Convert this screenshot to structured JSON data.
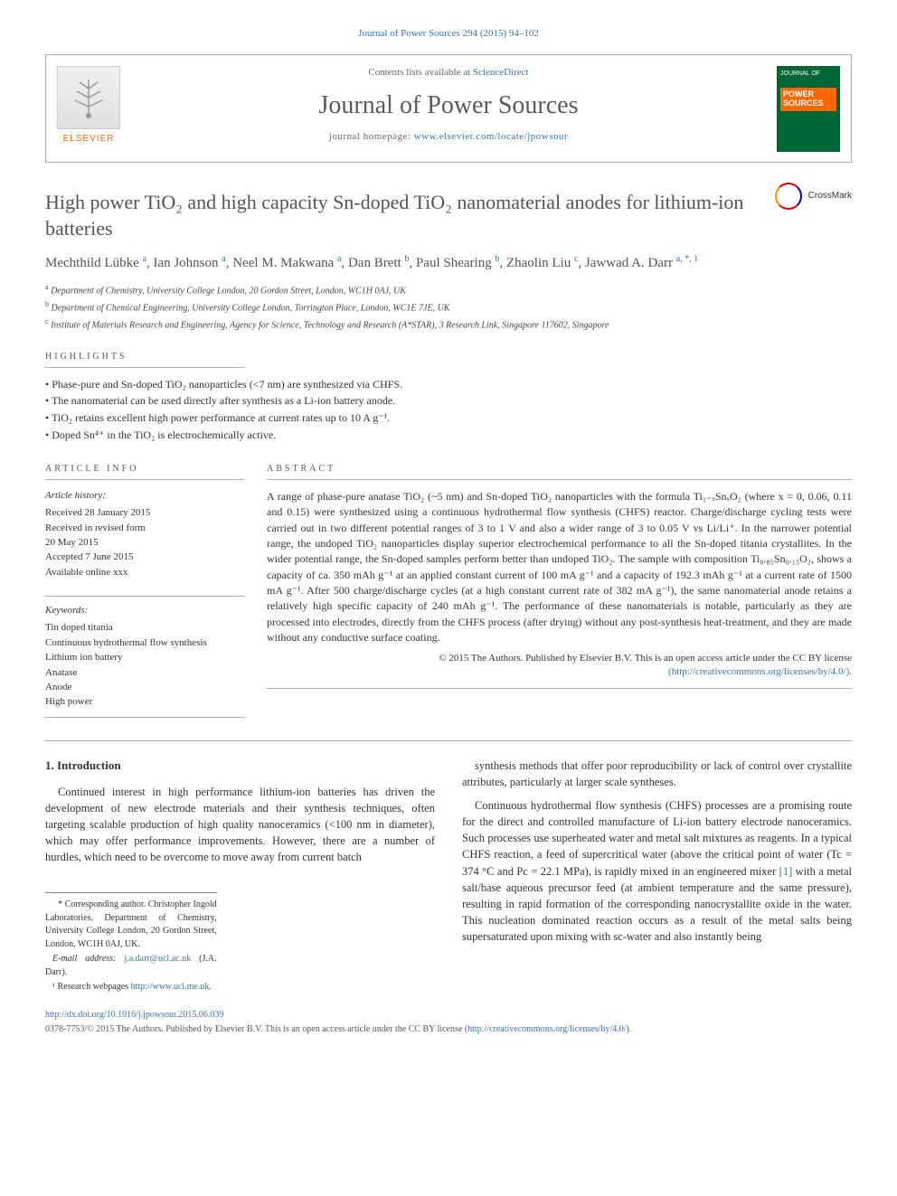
{
  "header": {
    "citation": "Journal of Power Sources 294 (2015) 94–102",
    "contents_prefix": "Contents lists available at ",
    "contents_link": "ScienceDirect",
    "journal_title": "Journal of Power Sources",
    "homepage_prefix": "journal homepage: ",
    "homepage_url": "www.elsevier.com/locate/jpowsour",
    "elsevier_label": "ELSEVIER",
    "cover_small": "JOURNAL OF",
    "cover_title": "POWER SOURCES"
  },
  "article": {
    "title": "High power TiO₂ and high capacity Sn-doped TiO₂ nanomaterial anodes for lithium-ion batteries",
    "crossmark": "CrossMark",
    "authors_html": "Mechthild Lübke <sup>a</sup>, Ian Johnson <sup>a</sup>, Neel M. Makwana <sup>a</sup>, Dan Brett <sup>b</sup>, Paul Shearing <sup>b</sup>, Zhaolin Liu <sup>c</sup>, Jawwad A. Darr <sup>a, *, 1</sup>",
    "affiliations": [
      {
        "marker": "a",
        "text": "Department of Chemistry, University College London, 20 Gordon Street, London, WC1H 0AJ, UK"
      },
      {
        "marker": "b",
        "text": "Department of Chemical Engineering, University College London, Torrington Place, London, WC1E 7JE, UK"
      },
      {
        "marker": "c",
        "text": "Institute of Materials Research and Engineering, Agency for Science, Technology and Research (A*STAR), 3 Research Link, Singapore 117602, Singapore"
      }
    ]
  },
  "highlights": {
    "label": "highlights",
    "items": [
      "Phase-pure and Sn-doped TiO₂ nanoparticles (<7 nm) are synthesized via CHFS.",
      "The nanomaterial can be used directly after synthesis as a Li-ion battery anode.",
      "TiO₂ retains excellent high power performance at current rates up to 10 A g⁻¹.",
      "Doped Sn⁴⁺ in the TiO₂ is electrochemically active."
    ]
  },
  "info": {
    "label": "article info",
    "history_label": "Article history:",
    "history": [
      "Received 28 January 2015",
      "Received in revised form",
      "20 May 2015",
      "Accepted 7 June 2015",
      "Available online xxx"
    ],
    "keywords_label": "Keywords:",
    "keywords": [
      "Tin doped titania",
      "Continuous hydrothermal flow synthesis",
      "Lithium ion battery",
      "Anatase",
      "Anode",
      "High power"
    ]
  },
  "abstract": {
    "label": "abstract",
    "text": "A range of phase-pure anatase TiO₂ (~5 nm) and Sn-doped TiO₂ nanoparticles with the formula Ti₁₋ₓSnₓO₂ (where x = 0, 0.06, 0.11 and 0.15) were synthesized using a continuous hydrothermal flow synthesis (CHFS) reactor. Charge/discharge cycling tests were carried out in two different potential ranges of 3 to 1 V and also a wider range of 3 to 0.05 V vs Li/Li⁺. In the narrower potential range, the undoped TiO₂ nanoparticles display superior electrochemical performance to all the Sn-doped titania crystallites. In the wider potential range, the Sn-doped samples perform better than undoped TiO₂. The sample with composition Ti₀.₈₅Sn₀.₁₅O₂, shows a capacity of ca. 350 mAh g⁻¹ at an applied constant current of 100 mA g⁻¹ and a capacity of 192.3 mAh g⁻¹ at a current rate of 1500 mA g⁻¹. After 500 charge/discharge cycles (at a high constant current rate of 382 mA g⁻¹), the same nanomaterial anode retains a relatively high specific capacity of 240 mAh g⁻¹. The performance of these nanomaterials is notable, particularly as they are processed into electrodes, directly from the CHFS process (after drying) without any post-synthesis heat-treatment, and they are made without any conductive surface coating.",
    "copyright": "© 2015 The Authors. Published by Elsevier B.V. This is an open access article under the CC BY license",
    "license_url": "(http://creativecommons.org/licenses/by/4.0/)."
  },
  "body": {
    "section_number": "1.",
    "section_title": "Introduction",
    "para1": "Continued interest in high performance lithium-ion batteries has driven the development of new electrode materials and their synthesis techniques, often targeting scalable production of high quality nanoceramics (<100 nm in diameter), which may offer performance improvements. However, there are a number of hurdles, which need to be overcome to move away from current batch",
    "para2": "synthesis methods that offer poor reproducibility or lack of control over crystallite attributes, particularly at larger scale syntheses.",
    "para3_prefix": "Continuous hydrothermal flow synthesis (CHFS) processes are a promising route for the direct and controlled manufacture of Li-ion battery electrode nanoceramics. Such processes use superheated water and metal salt mixtures as reagents. In a typical CHFS reaction, a feed of supercritical water (above the critical point of water (Tc = 374 °C and Pc = 22.1 MPa), is rapidly mixed in an engineered mixer ",
    "para3_ref": "[1]",
    "para3_suffix": " with a metal salt/base aqueous precursor feed (at ambient temperature and the same pressure), resulting in rapid formation of the corresponding nanocrystallite oxide in the water. This nucleation dominated reaction occurs as a result of the metal salts being supersaturated upon mixing with sc-water and also instantly being"
  },
  "footnotes": {
    "corresponding": "* Corresponding author. Christopher Ingold Laboratories, Department of Chemistry, University College London, 20 Gordon Street, London, WC1H 0AJ, UK.",
    "email_label": "E-mail address: ",
    "email": "j.a.darr@ucl.ac.uk",
    "email_suffix": " (J.A. Darr).",
    "research_label": "¹ Research webpages ",
    "research_url": "http://www.ucl.me.uk."
  },
  "footer": {
    "doi": "http://dx.doi.org/10.1016/j.jpowsour.2015.06.039",
    "issn_line": "0378-7753/© 2015 The Authors. Published by Elsevier B.V. This is an open access article under the CC BY license (",
    "license_url": "http://creativecommons.org/licenses/by/4.0/",
    "license_close": ")."
  },
  "colors": {
    "link": "#3a6fb0",
    "elsevier_orange": "#ff6600",
    "cover_green": "#006633",
    "text": "#333333",
    "border": "#aaaaaa"
  }
}
